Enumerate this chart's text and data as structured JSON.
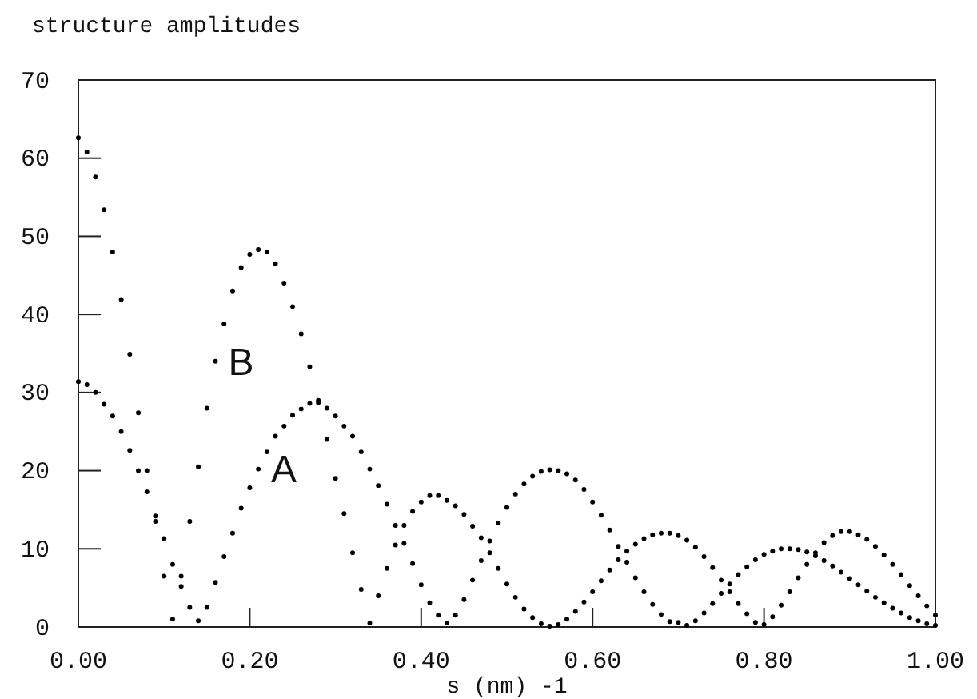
{
  "chart_data": {
    "type": "scatter",
    "title": "structure amplitudes",
    "xlabel": "s  (nm) -1",
    "xlim": [
      0,
      1
    ],
    "ylim": [
      0,
      70
    ],
    "xticks": [
      {
        "value": 0,
        "label": "0.00"
      },
      {
        "value": 0.2,
        "label": "0.20"
      },
      {
        "value": 0.4,
        "label": "0.40"
      },
      {
        "value": 0.6,
        "label": "0.60"
      },
      {
        "value": 0.8,
        "label": "0.80"
      },
      {
        "value": 1,
        "label": "1.00"
      }
    ],
    "yticks": [
      0,
      10,
      20,
      30,
      40,
      50,
      60,
      70
    ],
    "grid": false,
    "marker": "circle",
    "x": [
      0,
      0.01,
      0.02,
      0.03,
      0.04,
      0.05,
      0.06,
      0.07,
      0.08,
      0.09,
      0.1,
      0.11,
      0.12,
      0.13,
      0.14,
      0.15,
      0.16,
      0.17,
      0.18,
      0.19,
      0.2,
      0.21,
      0.22,
      0.23,
      0.24,
      0.25,
      0.26,
      0.27,
      0.28,
      0.29,
      0.3,
      0.31,
      0.32,
      0.33,
      0.34,
      0.35,
      0.36,
      0.37,
      0.38,
      0.39,
      0.4,
      0.41,
      0.42,
      0.43,
      0.44,
      0.45,
      0.46,
      0.47,
      0.48,
      0.49,
      0.5,
      0.51,
      0.52,
      0.53,
      0.54,
      0.55,
      0.56,
      0.57,
      0.58,
      0.59,
      0.6,
      0.61,
      0.62,
      0.63,
      0.64,
      0.65,
      0.66,
      0.67,
      0.68,
      0.69,
      0.7,
      0.71,
      0.72,
      0.73,
      0.74,
      0.75,
      0.76,
      0.77,
      0.78,
      0.79,
      0.8,
      0.81,
      0.82,
      0.83,
      0.84,
      0.85,
      0.86,
      0.87,
      0.88,
      0.89,
      0.9,
      0.91,
      0.92,
      0.93,
      0.94,
      0.95,
      0.96,
      0.97,
      0.98,
      0.99,
      1
    ],
    "series": [
      {
        "name": "A",
        "color": "#000000",
        "values": [
          31.4,
          31,
          30,
          28.5,
          27,
          25,
          22.6,
          20,
          17.3,
          14.2,
          11.3,
          8,
          5.2,
          2.5,
          0.8,
          2.5,
          5.7,
          9,
          12,
          15.2,
          17.8,
          20.2,
          22.4,
          24.4,
          25.7,
          27.1,
          27.9,
          28.6,
          28.7,
          28,
          27,
          25.7,
          24.4,
          22.4,
          20.2,
          18.1,
          15.7,
          13,
          10.7,
          8.1,
          5.4,
          3.1,
          1.5,
          0.5,
          1.5,
          3.5,
          6,
          8.5,
          11,
          13.3,
          15.3,
          17,
          18.3,
          19.3,
          19.9,
          20.1,
          20,
          19.6,
          18.8,
          17.6,
          16,
          14.3,
          12.4,
          10.3,
          8.3,
          6.3,
          4.5,
          2.9,
          1.6,
          0.7,
          0.6,
          0.2,
          0.8,
          1.8,
          3,
          4.3,
          5.5,
          6.7,
          7.7,
          8.6,
          9.3,
          9.7,
          10,
          10,
          9.9,
          9.6,
          9.1,
          8.5,
          7.8,
          7,
          6.2,
          5.4,
          4.6,
          3.8,
          3.1,
          2.4,
          1.8,
          1.2,
          0.8,
          0.4,
          0.2
        ]
      },
      {
        "name": "B",
        "color": "#000000",
        "values": [
          62.6,
          60.8,
          57.6,
          53.4,
          48,
          41.9,
          34.9,
          27.4,
          20,
          13.5,
          6.5,
          1,
          6.5,
          13.5,
          20.5,
          28,
          34,
          38.8,
          43,
          46,
          47.7,
          48.3,
          48,
          46.5,
          44,
          41,
          37.5,
          33.3,
          29,
          24,
          19,
          14.5,
          9.5,
          4.8,
          0.5,
          4,
          7.5,
          10.5,
          13,
          14.8,
          16,
          16.8,
          16.8,
          16.2,
          15.5,
          14.4,
          12.9,
          11.4,
          9.5,
          7.5,
          5.5,
          3.8,
          2.3,
          1.2,
          0.4,
          0.1,
          0.3,
          1,
          2,
          3.2,
          4.5,
          5.9,
          7.3,
          8.6,
          9.7,
          10.6,
          11.3,
          11.8,
          12,
          12,
          11.7,
          11.1,
          10.2,
          9,
          7.6,
          6,
          4.5,
          3,
          1.7,
          0.6,
          0.3,
          1.3,
          2.8,
          4.5,
          6.3,
          8,
          9.5,
          10.8,
          11.7,
          12.2,
          12.2,
          11.8,
          11.2,
          10.3,
          9.2,
          8,
          6.7,
          5.3,
          4,
          2.7,
          1.5
        ]
      }
    ]
  }
}
